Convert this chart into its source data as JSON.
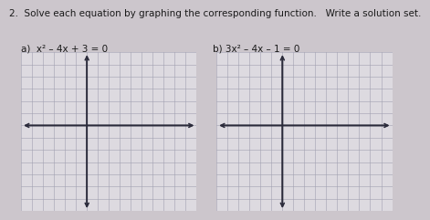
{
  "title_line1": "2.  Solve each equation by graphing the corresponding function.   Write a solution set.",
  "label_a": "a)  x² – 4x + 3 = 0",
  "label_b": "b) 3x² – 4x – 1 = 0",
  "bg_color": "#ccc6cc",
  "grid_color": "#a0a0b0",
  "axis_color": "#2a2a3a",
  "text_color": "#1a1a1a",
  "grid_bg": "#dddae0",
  "title_fontsize": 7.5,
  "label_fontsize": 7.5,
  "grid_lw": 0.4,
  "axis_lw": 1.2
}
